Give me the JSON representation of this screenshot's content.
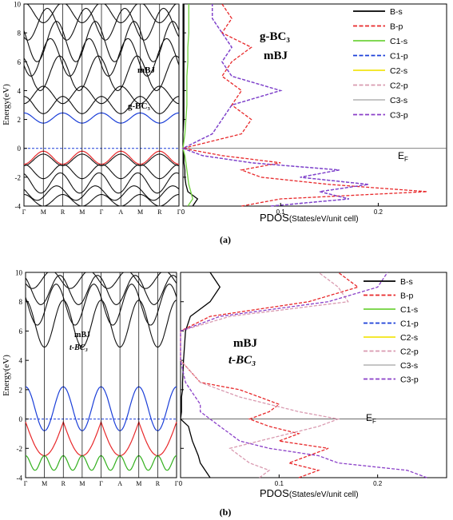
{
  "panels": [
    {
      "label": "(a)",
      "band": {
        "ylabel": "Energy(eV)",
        "ylim": [
          -4,
          10
        ],
        "yticks": [
          -4,
          -2,
          0,
          2,
          4,
          6,
          8,
          10
        ],
        "kpoints": [
          "Γ",
          "M",
          "R",
          "M",
          "Γ",
          "A",
          "M",
          "R",
          "Γ"
        ],
        "method": "mBJ",
        "material": "g-BC₃"
      },
      "pdos": {
        "xlabel_main": "PDOS",
        "xlabel_unit": "(States/eV/unit cell)",
        "xlim": [
          0,
          0.27
        ],
        "xticks": [
          0,
          0.1,
          0.2
        ],
        "title_material": "g-BC₃",
        "title_method": "mBJ",
        "fermi_label": "E",
        "fermi_sub": "F"
      }
    },
    {
      "label": "(b)",
      "band": {
        "ylabel": "Energy(eV)",
        "ylim": [
          -4,
          10
        ],
        "yticks": [
          -4,
          -2,
          0,
          2,
          4,
          6,
          8,
          10
        ],
        "kpoints": [
          "Γ",
          "M",
          "R",
          "M",
          "Γ",
          "A",
          "M",
          "R",
          "Γ"
        ],
        "method": "mBJ",
        "material": "t-BC₃"
      },
      "pdos": {
        "xlabel_main": "PDOS",
        "xlabel_unit": "(States/eV/unit cell)",
        "xlim": [
          0,
          0.27
        ],
        "xticks": [
          0,
          0.1,
          0.2
        ],
        "title_material": "t-BC₃",
        "title_method": "mBJ",
        "fermi_label": "E",
        "fermi_sub": "F"
      }
    }
  ],
  "legend": [
    {
      "name": "B-s",
      "color": "#000000",
      "dash": false
    },
    {
      "name": "B-p",
      "color": "#e8282a",
      "dash": true
    },
    {
      "name": "C1-s",
      "color": "#6fd23c",
      "dash": false
    },
    {
      "name": "C1-p",
      "color": "#1b3fd8",
      "dash": true
    },
    {
      "name": "C2-s",
      "color": "#f2e414",
      "dash": false
    },
    {
      "name": "C2-p",
      "color": "#d99ab0",
      "dash": true
    },
    {
      "name": "C3-s",
      "color": "#bdbdbd",
      "dash": false
    },
    {
      "name": "C3-p",
      "color": "#8a3fc8",
      "dash": true
    }
  ],
  "chart_data": [
    {
      "type": "line",
      "title": "",
      "panel": "(a) band structure",
      "ylabel": "Energy(eV)",
      "ylim": [
        -4,
        10
      ],
      "categories": [
        "Γ",
        "M",
        "R",
        "M",
        "Γ",
        "A",
        "M",
        "R",
        "Γ"
      ],
      "series": [
        {
          "name": "",
          "values": [
            -1.0,
            -0.3,
            -1.2,
            -0.3,
            -1.0,
            -0.3,
            -1.2,
            -0.3,
            -1.0
          ]
        },
        {
          "name": "",
          "values": [
            2.2,
            1.8,
            2.4,
            1.8,
            2.2,
            1.8,
            2.4,
            1.8,
            2.2
          ]
        }
      ]
    },
    {
      "type": "line",
      "title": "",
      "panel": "(a) PDOS",
      "xlabel": "PDOS(States/eV/unit cell)",
      "xlim": [
        0,
        0.27
      ],
      "ylim": [
        -4,
        10
      ],
      "y": [
        -4,
        -3.5,
        -3,
        -2.5,
        -2,
        -1.5,
        -1,
        -0.5,
        0,
        1,
        2,
        3,
        4,
        5,
        6,
        7,
        8,
        9,
        10
      ],
      "series": [
        {
          "name": "B-s",
          "values": [
            0.01,
            0.015,
            0.005,
            0.003,
            0.002,
            0.002,
            0.001,
            0.001,
            0,
            0,
            0.001,
            0.001,
            0.001,
            0.001,
            0.001,
            0.001,
            0.001,
            0.001,
            0.001
          ]
        },
        {
          "name": "B-p",
          "values": [
            0.06,
            0.1,
            0.25,
            0.15,
            0.08,
            0.06,
            0.1,
            0.04,
            0,
            0.06,
            0.07,
            0.05,
            0.06,
            0.04,
            0.05,
            0.07,
            0.04,
            0.05,
            0.04
          ]
        },
        {
          "name": "C1-s",
          "values": [
            0.005,
            0.01,
            0.008,
            0.006,
            0.005,
            0.004,
            0.003,
            0.002,
            0,
            0.002,
            0.003,
            0.004,
            0.004,
            0.004,
            0.005,
            0.005,
            0.006,
            0.006,
            0.006
          ]
        },
        {
          "name": "C1-p",
          "values": [
            0.09,
            0.17,
            0.14,
            0.19,
            0.12,
            0.16,
            0.07,
            0.02,
            0,
            0.03,
            0.04,
            0.05,
            0.1,
            0.05,
            0.04,
            0.05,
            0.04,
            0.03,
            0.03
          ]
        },
        {
          "name": "C3-p",
          "values": [
            0.09,
            0.17,
            0.14,
            0.19,
            0.12,
            0.16,
            0.07,
            0.02,
            0,
            0.03,
            0.04,
            0.05,
            0.1,
            0.05,
            0.04,
            0.05,
            0.04,
            0.03,
            0.03
          ]
        }
      ]
    },
    {
      "type": "line",
      "title": "",
      "panel": "(b) band structure",
      "ylabel": "Energy(eV)",
      "ylim": [
        -4,
        10
      ],
      "categories": [
        "Γ",
        "M",
        "R",
        "M",
        "Γ",
        "A",
        "M",
        "R",
        "Γ"
      ],
      "series": [
        {
          "name": "",
          "values": [
            2.2,
            0.5,
            -0.8,
            0.5,
            2.2,
            0.4,
            -0.5,
            0.3,
            2.2
          ]
        },
        {
          "name": "",
          "values": [
            -2.4,
            -3.0,
            -2.5,
            -3.0,
            -2.4,
            -2.5,
            -3.0,
            -2.5,
            -2.4
          ]
        }
      ]
    },
    {
      "type": "line",
      "title": "",
      "panel": "(b) PDOS",
      "xlabel": "PDOS(States/eV/unit cell)",
      "xlim": [
        0,
        0.27
      ],
      "ylim": [
        -4,
        10
      ],
      "y": [
        -4,
        -3.5,
        -3,
        -2.5,
        -2,
        -1.5,
        -1,
        -0.5,
        0,
        0.5,
        1,
        1.5,
        2,
        2.5,
        4,
        6,
        7,
        8,
        9,
        10
      ],
      "series": [
        {
          "name": "B-s",
          "values": [
            0.03,
            0.025,
            0.02,
            0.018,
            0.015,
            0.012,
            0.01,
            0.008,
            0,
            0.001,
            0.001,
            0.001,
            0.002,
            0.002,
            0.003,
            0.005,
            0.01,
            0.03,
            0.04,
            0.03
          ]
        },
        {
          "name": "B-p",
          "values": [
            0.12,
            0.14,
            0.11,
            0.13,
            0.15,
            0.1,
            0.12,
            0.09,
            0.07,
            0.09,
            0.1,
            0.08,
            0.06,
            0.02,
            0.0,
            0.0,
            0.03,
            0.13,
            0.18,
            0.16
          ]
        },
        {
          "name": "C2-p",
          "values": [
            0.08,
            0.09,
            0.07,
            0.06,
            0.05,
            0.08,
            0.11,
            0.14,
            0.16,
            0.12,
            0.09,
            0.06,
            0.04,
            0.02,
            0.0,
            0.0,
            0.05,
            0.17,
            0.16,
            0.14
          ]
        },
        {
          "name": "C3-p",
          "values": [
            0.25,
            0.23,
            0.16,
            0.14,
            0.09,
            0.06,
            0.05,
            0.04,
            0.03,
            0.02,
            0.02,
            0.015,
            0.01,
            0.005,
            0.0,
            0.0,
            0.04,
            0.15,
            0.2,
            0.21
          ]
        }
      ]
    }
  ]
}
